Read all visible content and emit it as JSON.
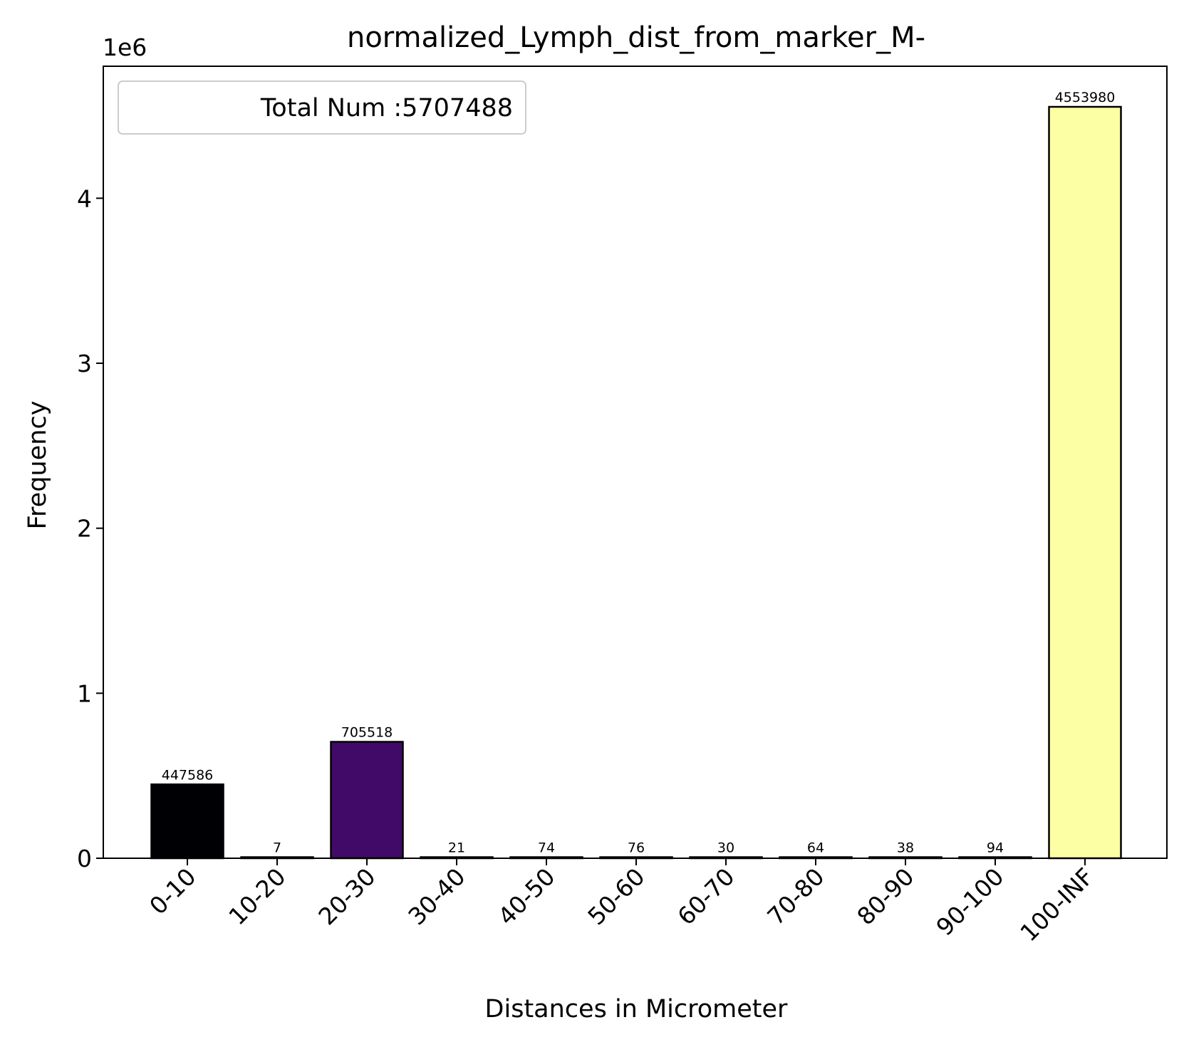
{
  "chart_data": {
    "type": "bar",
    "title": "normalized_Lymph_dist_from_marker_M-",
    "xlabel": "Distances in Micrometer",
    "ylabel": "Frequency",
    "y_scale_note": "1e6",
    "ylim": [
      0,
      4800000
    ],
    "yticks": [
      0,
      1000000,
      2000000,
      3000000,
      4000000
    ],
    "ytick_labels": [
      "0",
      "1",
      "2",
      "3",
      "4"
    ],
    "categories": [
      "0-10",
      "10-20",
      "20-30",
      "30-40",
      "40-50",
      "50-60",
      "60-70",
      "70-80",
      "80-90",
      "90-100",
      "100-INF"
    ],
    "values": [
      447586,
      7,
      705518,
      21,
      74,
      76,
      30,
      64,
      38,
      94,
      4553980
    ],
    "data_labels": [
      "447586",
      "7",
      "705518",
      "21",
      "74",
      "76",
      "30",
      "64",
      "38",
      "94",
      "4553980"
    ],
    "bar_colors": [
      "#000004",
      "#1b0c41",
      "#420a68",
      "#6a176e",
      "#932667",
      "#bc3754",
      "#dd513a",
      "#f37819",
      "#fca50a",
      "#f6d746",
      "#fcffa4"
    ],
    "legend": {
      "text": "Total Num :5707488",
      "placement": "top-left"
    },
    "grid": false
  }
}
